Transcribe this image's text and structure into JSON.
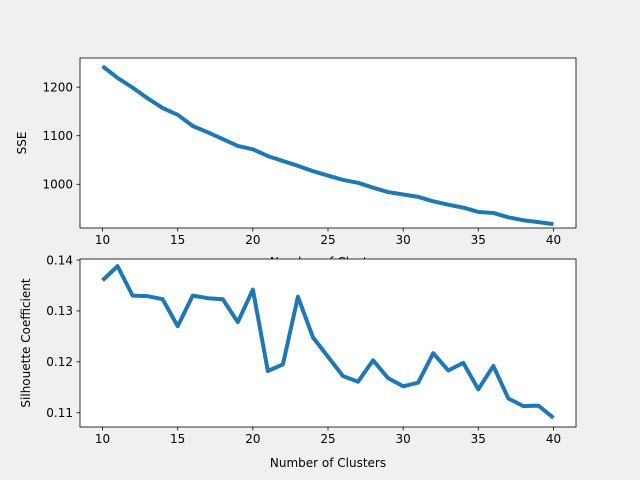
{
  "figure": {
    "background": "#f0f0f0",
    "axes_background": "#ffffff",
    "line_color": "#1f77b4"
  },
  "chart_data": [
    {
      "type": "line",
      "title": "",
      "xlabel": "Number of Clusters",
      "ylabel": "SSE",
      "xlim": [
        8.5,
        41.5
      ],
      "ylim": [
        910,
        1260
      ],
      "xticks": [
        10,
        15,
        20,
        25,
        30,
        35,
        40
      ],
      "yticks": [
        1000,
        1100,
        1200
      ],
      "grid": false,
      "legend": "none",
      "x": [
        10,
        11,
        12,
        13,
        14,
        15,
        16,
        17,
        18,
        19,
        20,
        21,
        22,
        23,
        24,
        25,
        26,
        27,
        28,
        29,
        30,
        31,
        32,
        33,
        34,
        35,
        36,
        37,
        38,
        39,
        40
      ],
      "y": [
        1243,
        1219,
        1199,
        1177,
        1157,
        1143,
        1120,
        1107,
        1093,
        1079,
        1072,
        1058,
        1048,
        1038,
        1027,
        1018,
        1009,
        1003,
        993,
        984,
        979,
        974,
        965,
        958,
        952,
        943,
        941,
        932,
        926,
        922,
        918
      ]
    },
    {
      "type": "line",
      "title": "",
      "xlabel": "Number of Clusters",
      "ylabel": "Silhouette Coefficient",
      "xlim": [
        8.5,
        41.5
      ],
      "ylim": [
        0.1072,
        0.1402
      ],
      "xticks": [
        10,
        15,
        20,
        25,
        30,
        35,
        40
      ],
      "yticks": [
        0.11,
        0.12,
        0.13,
        0.14
      ],
      "grid": false,
      "legend": "none",
      "x": [
        10,
        11,
        12,
        13,
        14,
        15,
        16,
        17,
        18,
        19,
        20,
        21,
        22,
        23,
        24,
        25,
        26,
        27,
        28,
        29,
        30,
        31,
        32,
        33,
        34,
        35,
        36,
        37,
        38,
        39,
        40
      ],
      "y": [
        0.136,
        0.1388,
        0.133,
        0.1329,
        0.1323,
        0.127,
        0.133,
        0.1325,
        0.1323,
        0.1278,
        0.1342,
        0.1182,
        0.1195,
        0.1328,
        0.1248,
        0.121,
        0.1172,
        0.1161,
        0.1203,
        0.1168,
        0.1152,
        0.1159,
        0.1217,
        0.1183,
        0.1198,
        0.1146,
        0.1192,
        0.1128,
        0.1113,
        0.1114,
        0.109
      ]
    }
  ]
}
